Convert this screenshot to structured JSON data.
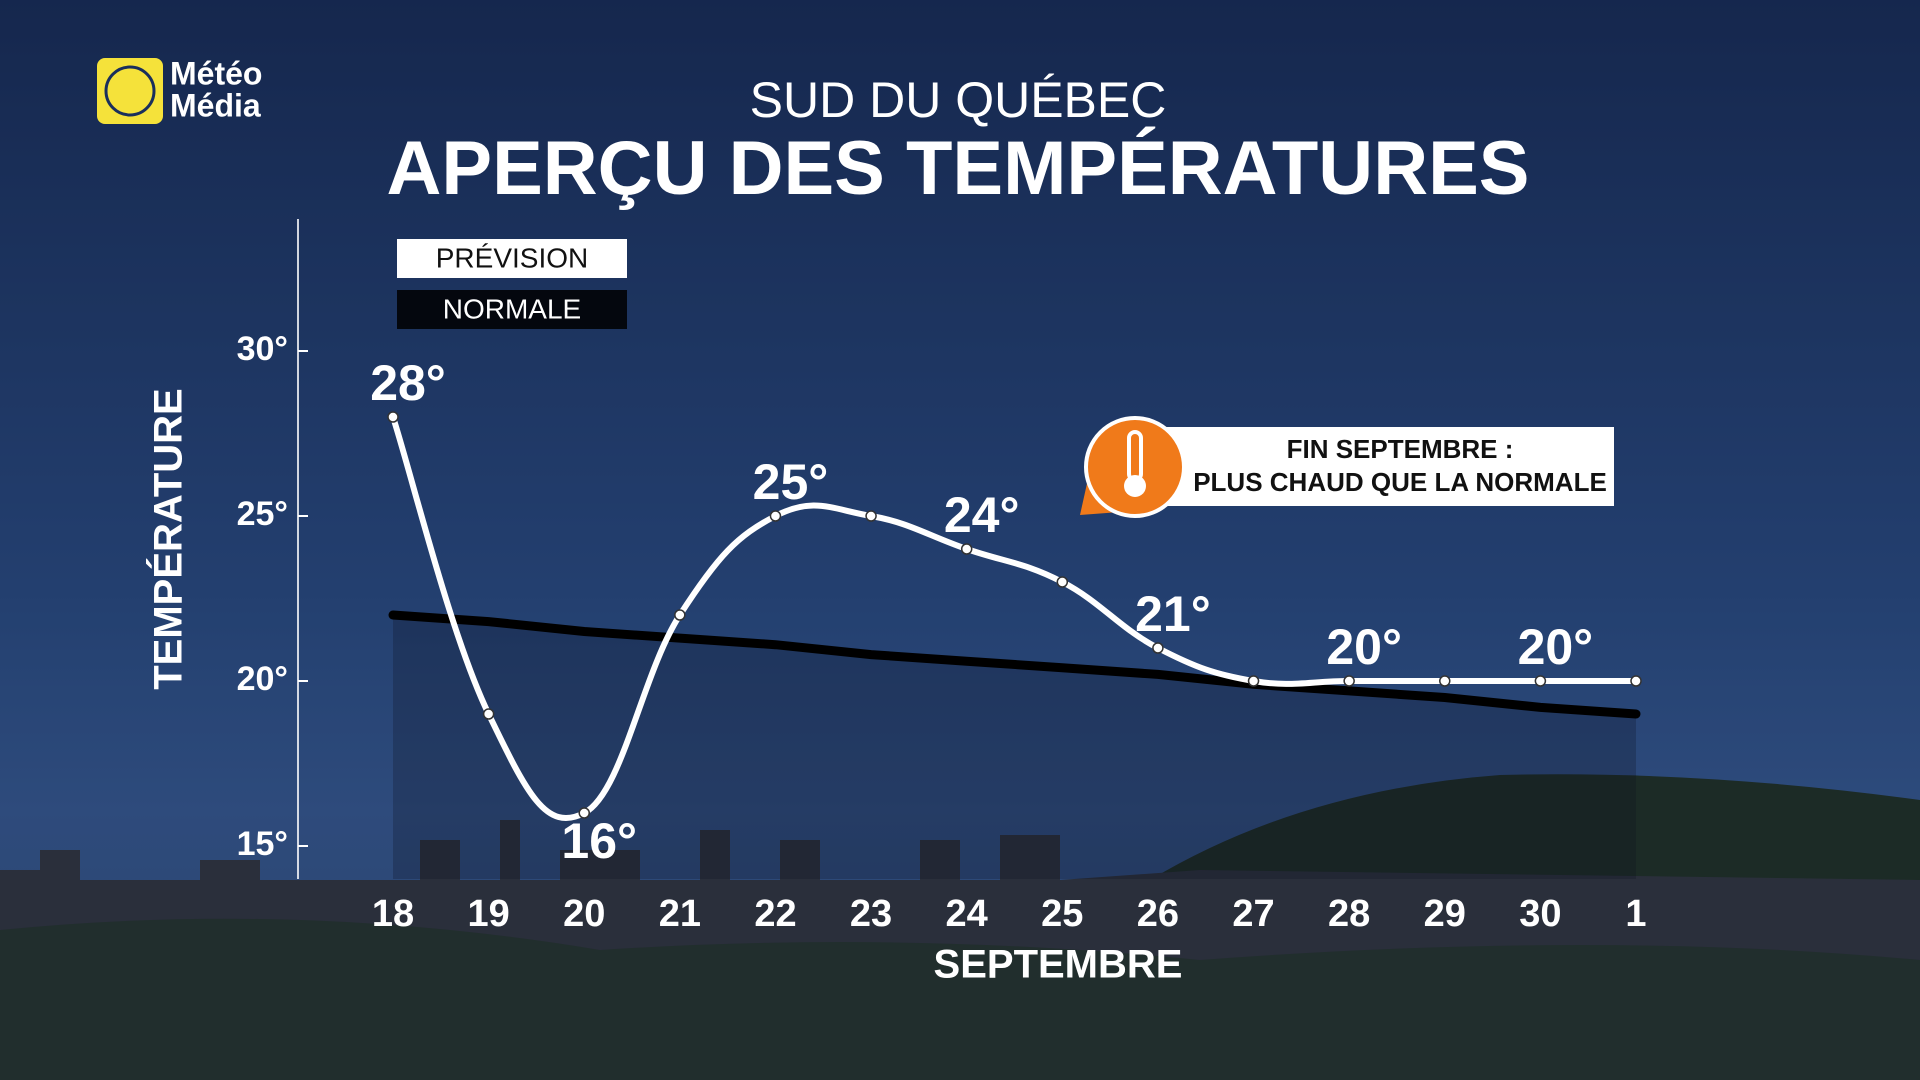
{
  "logo": [
    "Météo",
    "Média"
  ],
  "chart_data": {
    "type": "line",
    "subtitle": "SUD DU QUÉBEC",
    "title": "APERÇU DES TEMPÉRATURES",
    "x_label": "SEPTEMBRE",
    "y_label": "TEMPÉRATURE",
    "categories": [
      "18",
      "19",
      "20",
      "21",
      "22",
      "23",
      "24",
      "25",
      "26",
      "27",
      "28",
      "29",
      "30",
      "1"
    ],
    "series": [
      {
        "name": "PRÉVISION",
        "color": "#ffffff",
        "values": [
          28,
          19,
          16,
          22,
          25,
          25,
          24,
          23,
          21,
          20,
          20,
          20,
          20,
          20
        ],
        "value_labels": [
          "28°",
          null,
          "16°",
          null,
          "25°",
          null,
          "24°",
          null,
          "21°",
          null,
          "20°",
          null,
          "20°",
          null
        ]
      },
      {
        "name": "NORMALE",
        "color": "#000000",
        "values": [
          22,
          21.8,
          21.5,
          21.3,
          21.1,
          20.8,
          20.6,
          20.4,
          20.2,
          19.9,
          19.7,
          19.5,
          19.2,
          19
        ]
      }
    ],
    "ylim": [
      14,
      34
    ],
    "yticks": [
      {
        "value": 15,
        "label": "15°"
      },
      {
        "value": 20,
        "label": "20°"
      },
      {
        "value": 25,
        "label": "25°"
      },
      {
        "value": 30,
        "label": "30°"
      }
    ],
    "annotation": [
      "FIN SEPTEMBRE :",
      "PLUS CHAUD QUE LA NORMALE"
    ]
  }
}
